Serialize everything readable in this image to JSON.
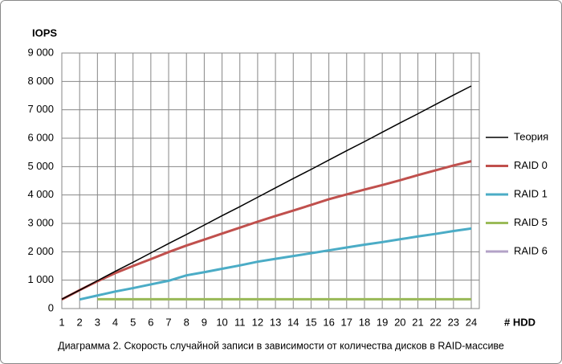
{
  "chart_data": {
    "type": "line",
    "y_label": "IOPS",
    "x_label": "# HDD",
    "caption": "Диаграмма 2. Скорость случайной записи в зависимости от количества дисков в RAID-массиве",
    "x": [
      1,
      2,
      3,
      4,
      5,
      6,
      7,
      8,
      9,
      10,
      11,
      12,
      13,
      14,
      15,
      16,
      17,
      18,
      19,
      20,
      21,
      22,
      23,
      24
    ],
    "xlim": [
      1,
      24
    ],
    "xticks": [
      1,
      2,
      3,
      4,
      5,
      6,
      7,
      8,
      9,
      10,
      11,
      12,
      13,
      14,
      15,
      16,
      17,
      18,
      19,
      20,
      21,
      22,
      23,
      24
    ],
    "ylim": [
      0,
      9000
    ],
    "yticks": [
      0,
      {
        "value": 1000,
        "label": "1 000"
      },
      {
        "value": 2000,
        "label": "2 000"
      },
      {
        "value": 3000,
        "label": "3 000"
      },
      {
        "value": 4000,
        "label": "4 000"
      },
      {
        "value": 5000,
        "label": "5 000"
      },
      {
        "value": 6000,
        "label": "6 000"
      },
      {
        "value": 7000,
        "label": "7 000"
      },
      {
        "value": 8000,
        "label": "8 000"
      },
      {
        "value": 9000,
        "label": "9 000"
      }
    ],
    "grid": true,
    "legend": "right",
    "series": [
      {
        "name": "Теория",
        "color": "#000000",
        "values": [
          330,
          650,
          980,
          1310,
          1630,
          1960,
          2290,
          2610,
          2940,
          3270,
          3590,
          3920,
          4250,
          4580,
          4900,
          5230,
          5560,
          5880,
          6210,
          6540,
          6860,
          7190,
          7520,
          7840
        ]
      },
      {
        "name": "RAID 0",
        "color": "#c0504d",
        "values": [
          320,
          650,
          960,
          1250,
          1500,
          1740,
          1990,
          2220,
          2430,
          2640,
          2850,
          3060,
          3260,
          3450,
          3650,
          3850,
          4020,
          4190,
          4350,
          4520,
          4700,
          4870,
          5040,
          5190
        ]
      },
      {
        "name": "RAID 1",
        "color": "#4bacc6",
        "values": [
          null,
          320,
          460,
          600,
          720,
          850,
          980,
          1170,
          1280,
          1400,
          1520,
          1650,
          1750,
          1850,
          1950,
          2050,
          2150,
          2250,
          2340,
          2440,
          2540,
          2630,
          2730,
          2820
        ]
      },
      {
        "name": "RAID 5",
        "color": "#9bbb59",
        "values": [
          null,
          null,
          330,
          330,
          330,
          330,
          330,
          330,
          330,
          330,
          330,
          330,
          330,
          330,
          330,
          330,
          330,
          330,
          330,
          330,
          330,
          330,
          330,
          330
        ]
      },
      {
        "name": "RAID 6",
        "color": "#b3a2c7",
        "values": [
          null,
          null,
          null,
          325,
          325,
          325,
          325,
          325,
          325,
          325,
          325,
          325,
          325,
          325,
          325,
          325,
          325,
          325,
          325,
          325,
          325,
          325,
          325,
          325
        ]
      }
    ]
  }
}
